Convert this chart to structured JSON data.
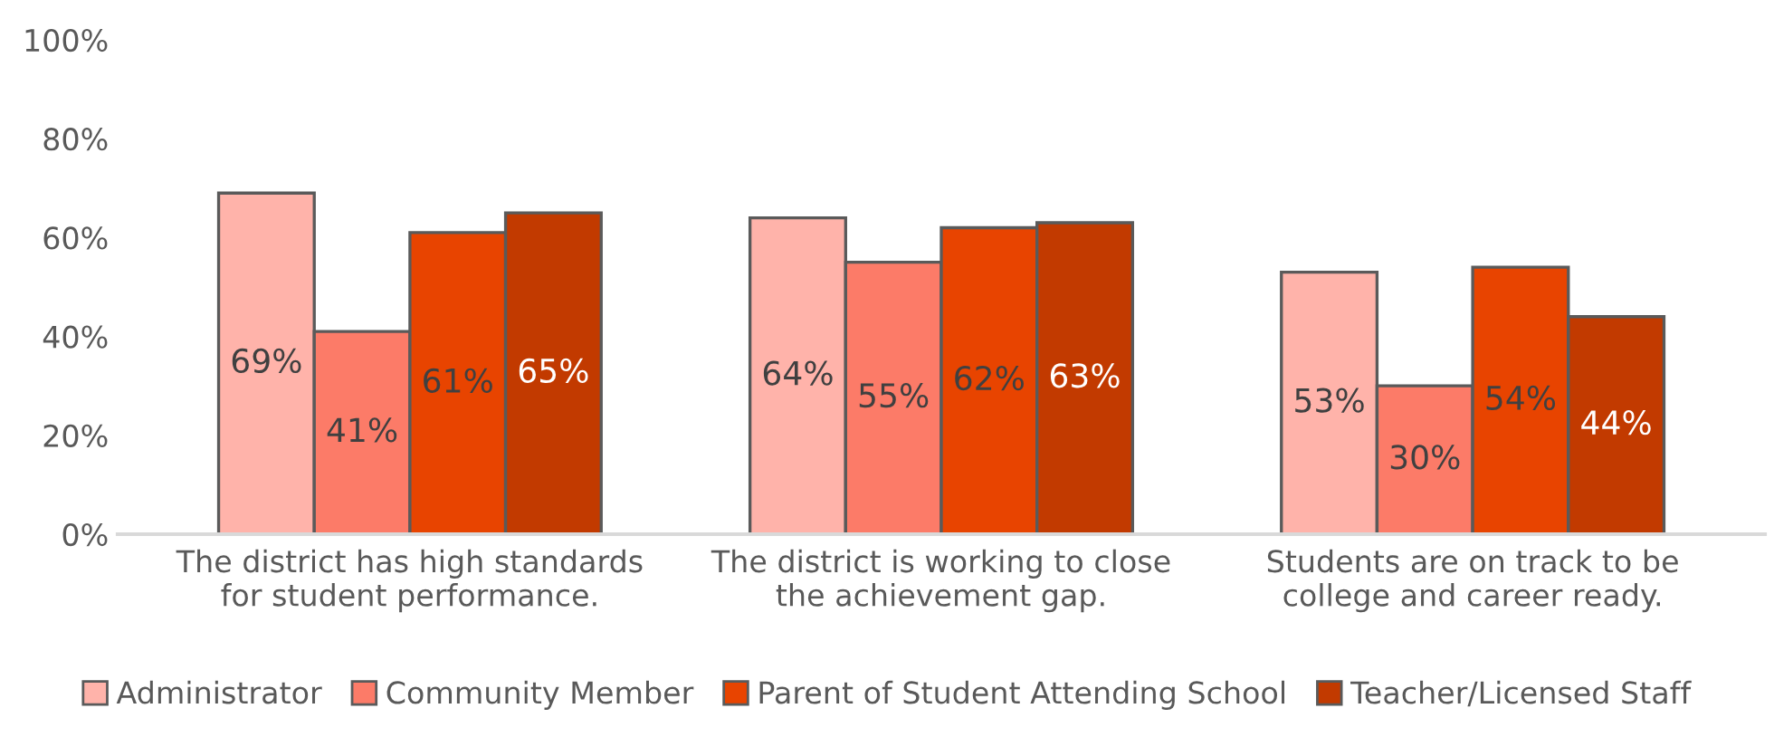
{
  "chart_data": {
    "type": "bar",
    "categories": [
      "The district has high standards\nfor student performance.",
      "The district is working to close\nthe achievement gap.",
      "Students are on track to be\ncollege and career ready."
    ],
    "series": [
      {
        "name": "Administrator",
        "color": "#ffb3aa",
        "values": [
          69,
          64,
          53
        ]
      },
      {
        "name": "Community Member",
        "color": "#fc7b68",
        "values": [
          41,
          55,
          30
        ]
      },
      {
        "name": "Parent of Student Attending School",
        "color": "#e84400",
        "values": [
          61,
          62,
          54
        ]
      },
      {
        "name": "Teacher/Licensed Staff",
        "color": "#c23a00",
        "values": [
          65,
          63,
          44
        ]
      }
    ],
    "value_labels": [
      [
        "69%",
        "64%",
        "53%"
      ],
      [
        "41%",
        "55%",
        "30%"
      ],
      [
        "61%",
        "62%",
        "54%"
      ],
      [
        "65%",
        "63%",
        "44%"
      ]
    ],
    "ylim": [
      0,
      100
    ],
    "yticks": [
      {
        "value": 0,
        "label": "0%"
      },
      {
        "value": 20,
        "label": "20%"
      },
      {
        "value": 40,
        "label": "40%"
      },
      {
        "value": 60,
        "label": "60%"
      },
      {
        "value": 80,
        "label": "80%"
      },
      {
        "value": 100,
        "label": "100%"
      }
    ],
    "grid": false,
    "legend": "bottom"
  }
}
